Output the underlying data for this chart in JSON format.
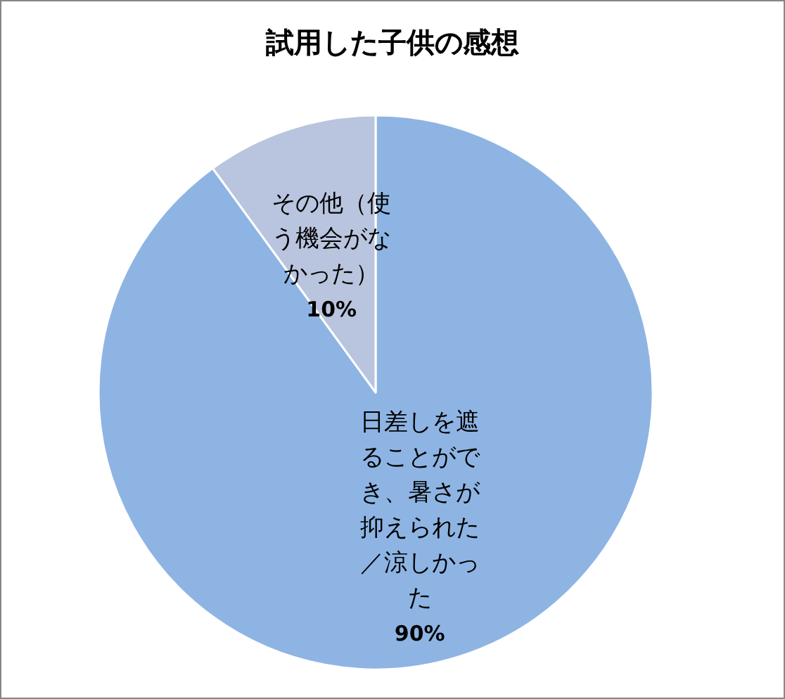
{
  "chart_data": {
    "type": "pie",
    "title": "試用した子供の感想",
    "categories": [
      "日差しを遮ることができ、暑さが抑えられた／涼しかった",
      "その他（使う機会がなかった）"
    ],
    "values": [
      90,
      10
    ],
    "colors": [
      "#8eb4e3",
      "#b9c4de"
    ],
    "value_labels": [
      "90%",
      "10%"
    ],
    "legend": false
  }
}
